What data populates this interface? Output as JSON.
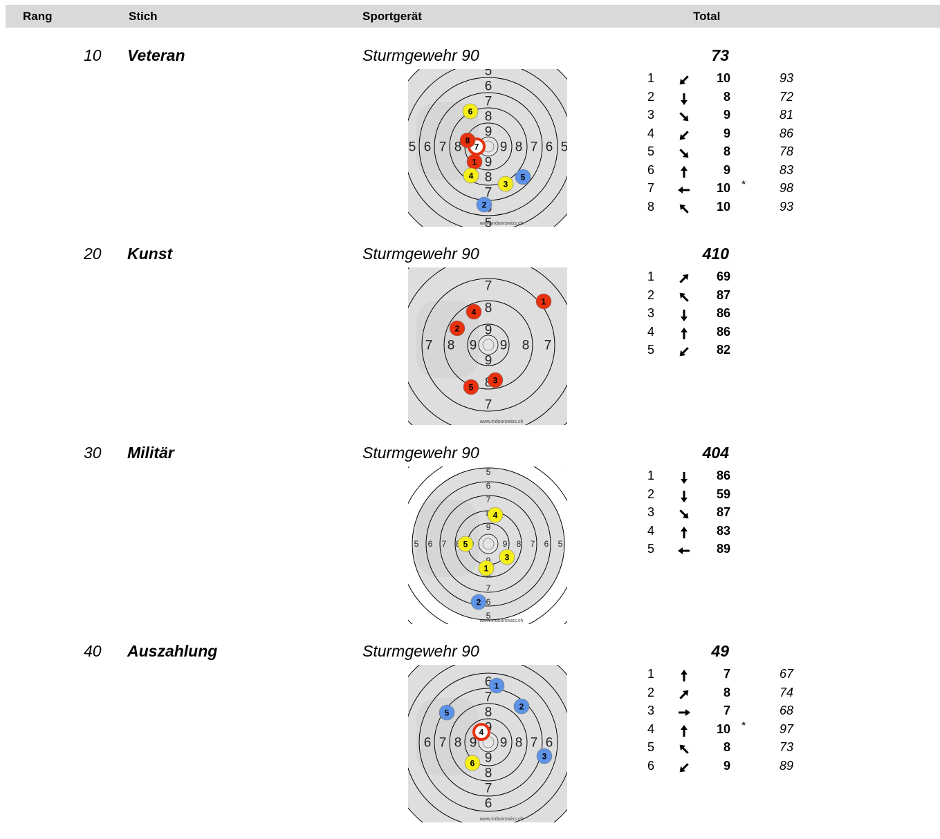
{
  "header": {
    "rang": "Rang",
    "stich": "Stich",
    "sportgeraet": "Sportgerät",
    "total": "Total"
  },
  "colors": {
    "header_bg": "#d9d9d9",
    "target_grey": "#dedede",
    "shot_red": "#e8320f",
    "shot_yellow": "#f5ee1a",
    "shot_blue": "#5c93e6"
  },
  "sections": [
    {
      "num": "10",
      "stich": "Veteran",
      "device": "Sturmgewehr 90",
      "total": "73",
      "target": {
        "style": "A10",
        "ring_labels": [
          "5",
          "6",
          "7",
          "8",
          "9"
        ],
        "footer": "www.indoorswiss.ch",
        "shots": [
          {
            "n": "1",
            "color": "red",
            "icon": "red-shot-marker"
          },
          {
            "n": "2",
            "color": "blue",
            "icon": "blue-shot-marker"
          },
          {
            "n": "3",
            "color": "yellow",
            "icon": "yellow-shot-marker"
          },
          {
            "n": "4",
            "color": "yellow",
            "icon": "yellow-shot-marker"
          },
          {
            "n": "5",
            "color": "blue",
            "icon": "blue-shot-marker"
          },
          {
            "n": "6",
            "color": "yellow",
            "icon": "yellow-shot-marker"
          },
          {
            "n": "7",
            "color": "ring",
            "icon": "ring-shot-marker"
          },
          {
            "n": "8",
            "color": "red",
            "icon": "red-shot-marker"
          }
        ]
      },
      "rows": [
        {
          "n": "1",
          "dir": "down-left-arrow",
          "v": "10",
          "star": "",
          "d": "93"
        },
        {
          "n": "2",
          "dir": "down-arrow",
          "v": "8",
          "star": "",
          "d": "72"
        },
        {
          "n": "3",
          "dir": "down-right-arrow",
          "v": "9",
          "star": "",
          "d": "81"
        },
        {
          "n": "4",
          "dir": "down-left-arrow",
          "v": "9",
          "star": "",
          "d": "86"
        },
        {
          "n": "5",
          "dir": "down-right-arrow",
          "v": "8",
          "star": "",
          "d": "78"
        },
        {
          "n": "6",
          "dir": "up-arrow",
          "v": "9",
          "star": "",
          "d": "83"
        },
        {
          "n": "7",
          "dir": "left-arrow",
          "v": "10",
          "star": "*",
          "d": "98"
        },
        {
          "n": "8",
          "dir": "up-left-arrow",
          "v": "10",
          "star": "",
          "d": "93"
        }
      ]
    },
    {
      "num": "20",
      "stich": "Kunst",
      "device": "Sturmgewehr 90",
      "total": "410",
      "target": {
        "style": "B10",
        "ring_labels": [
          "7",
          "8",
          "9"
        ],
        "footer": "www.indoorswiss.ch",
        "shots": [
          {
            "n": "1",
            "color": "red",
            "icon": "red-shot-marker"
          },
          {
            "n": "2",
            "color": "red",
            "icon": "red-shot-marker"
          },
          {
            "n": "3",
            "color": "red",
            "icon": "red-shot-marker"
          },
          {
            "n": "4",
            "color": "red",
            "icon": "red-shot-marker"
          },
          {
            "n": "5",
            "color": "red",
            "icon": "red-shot-marker"
          }
        ]
      },
      "rows": [
        {
          "n": "1",
          "dir": "up-right-arrow",
          "v": "69",
          "star": "",
          "d": ""
        },
        {
          "n": "2",
          "dir": "up-left-arrow",
          "v": "87",
          "star": "",
          "d": ""
        },
        {
          "n": "3",
          "dir": "down-arrow",
          "v": "86",
          "star": "",
          "d": ""
        },
        {
          "n": "4",
          "dir": "up-arrow",
          "v": "86",
          "star": "",
          "d": ""
        },
        {
          "n": "5",
          "dir": "down-left-arrow",
          "v": "82",
          "star": "",
          "d": ""
        }
      ]
    },
    {
      "num": "30",
      "stich": "Militär",
      "device": "Sturmgewehr 90",
      "total": "404",
      "target": {
        "style": "A5",
        "ring_labels": [
          "5",
          "6",
          "7",
          "8",
          "9"
        ],
        "footer": "www.indoorswiss.ch",
        "shots": [
          {
            "n": "1",
            "color": "yellow",
            "icon": "yellow-shot-marker"
          },
          {
            "n": "2",
            "color": "blue",
            "icon": "blue-shot-marker"
          },
          {
            "n": "3",
            "color": "yellow",
            "icon": "yellow-shot-marker"
          },
          {
            "n": "4",
            "color": "yellow",
            "icon": "yellow-shot-marker"
          },
          {
            "n": "5",
            "color": "yellow",
            "icon": "yellow-shot-marker"
          }
        ]
      },
      "rows": [
        {
          "n": "1",
          "dir": "down-arrow",
          "v": "86",
          "star": "",
          "d": ""
        },
        {
          "n": "2",
          "dir": "down-arrow",
          "v": "59",
          "star": "",
          "d": ""
        },
        {
          "n": "3",
          "dir": "down-right-arrow",
          "v": "87",
          "star": "",
          "d": ""
        },
        {
          "n": "4",
          "dir": "up-arrow",
          "v": "83",
          "star": "",
          "d": ""
        },
        {
          "n": "5",
          "dir": "left-arrow",
          "v": "89",
          "star": "",
          "d": ""
        }
      ]
    },
    {
      "num": "40",
      "stich": "Auszahlung",
      "device": "Sturmgewehr 90",
      "total": "49",
      "target": {
        "style": "A10",
        "ring_labels": [
          "6",
          "7",
          "8",
          "9"
        ],
        "footer": "www.indoorswiss.ch",
        "shots": [
          {
            "n": "1",
            "color": "blue",
            "icon": "blue-shot-marker"
          },
          {
            "n": "2",
            "color": "blue",
            "icon": "blue-shot-marker"
          },
          {
            "n": "3",
            "color": "blue",
            "icon": "blue-shot-marker"
          },
          {
            "n": "4",
            "color": "ring",
            "icon": "ring-shot-marker"
          },
          {
            "n": "5",
            "color": "blue",
            "icon": "blue-shot-marker"
          },
          {
            "n": "6",
            "color": "yellow",
            "icon": "yellow-shot-marker"
          }
        ]
      },
      "rows": [
        {
          "n": "1",
          "dir": "up-arrow",
          "v": "7",
          "star": "",
          "d": "67"
        },
        {
          "n": "2",
          "dir": "up-right-arrow",
          "v": "8",
          "star": "",
          "d": "74"
        },
        {
          "n": "3",
          "dir": "right-arrow",
          "v": "7",
          "star": "",
          "d": "68"
        },
        {
          "n": "4",
          "dir": "up-arrow",
          "v": "10",
          "star": "*",
          "d": "97"
        },
        {
          "n": "5",
          "dir": "up-left-arrow",
          "v": "8",
          "star": "",
          "d": "73"
        },
        {
          "n": "6",
          "dir": "down-left-arrow",
          "v": "9",
          "star": "",
          "d": "89"
        }
      ]
    }
  ]
}
